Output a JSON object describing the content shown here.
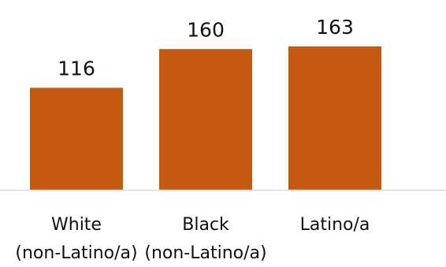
{
  "chart_data": {
    "type": "bar",
    "categories": [
      [
        "White",
        "(non-Latino/a)"
      ],
      [
        "Black",
        "(non-Latino/a)"
      ],
      [
        "Latino/a"
      ]
    ],
    "values": [
      116,
      160,
      163
    ],
    "value_labels": [
      "116",
      "160",
      "163"
    ],
    "ylim": [
      0,
      200
    ],
    "grid": false,
    "legend": "none",
    "bar_color": "#C55A11",
    "axis_color": "#D9D9D9"
  }
}
